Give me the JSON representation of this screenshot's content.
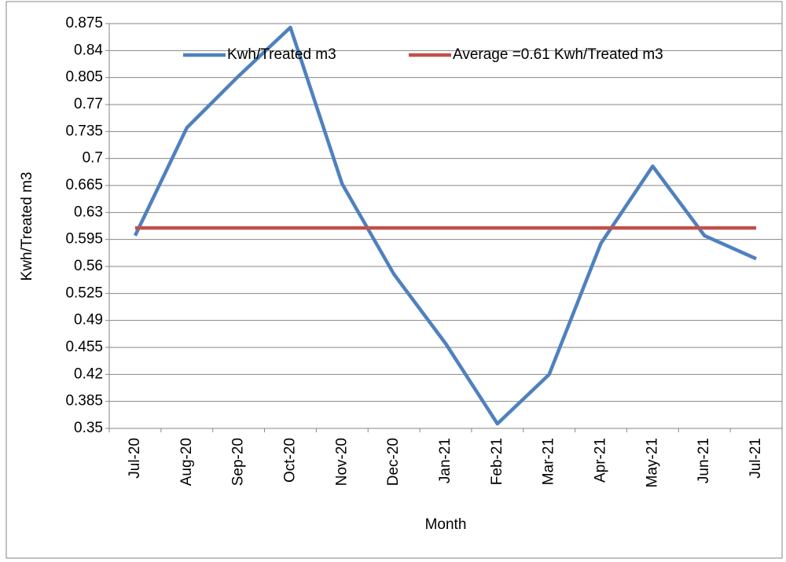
{
  "chart_data": {
    "type": "line",
    "xlabel": "Month",
    "ylabel": "Kwh/Treated m3",
    "categories": [
      "Jul-20",
      "Aug-20",
      "Sep-20",
      "Oct-20",
      "Nov-20",
      "Dec-20",
      "Jan-21",
      "Feb-21",
      "Mar-21",
      "Apr-21",
      "May-21",
      "Jun-21",
      "Jul-21"
    ],
    "series": [
      {
        "name": "Kwh/Treated m3",
        "color": "#4f81bd",
        "values": [
          0.6,
          0.74,
          0.807,
          0.87,
          0.667,
          0.55,
          0.46,
          0.356,
          0.42,
          0.59,
          0.69,
          0.6,
          0.57
        ]
      },
      {
        "name": "Average =0.61 Kwh/Treated m3",
        "color": "#c0504d",
        "values": [
          0.61,
          0.61,
          0.61,
          0.61,
          0.61,
          0.61,
          0.61,
          0.61,
          0.61,
          0.61,
          0.61,
          0.61,
          0.61
        ]
      }
    ],
    "ylim": [
      0.35,
      0.875
    ],
    "yticks": [
      0.35,
      0.385,
      0.42,
      0.455,
      0.49,
      0.525,
      0.56,
      0.595,
      0.63,
      0.665,
      0.7,
      0.735,
      0.77,
      0.805,
      0.84,
      0.875
    ],
    "grid": true,
    "legend": "top"
  }
}
